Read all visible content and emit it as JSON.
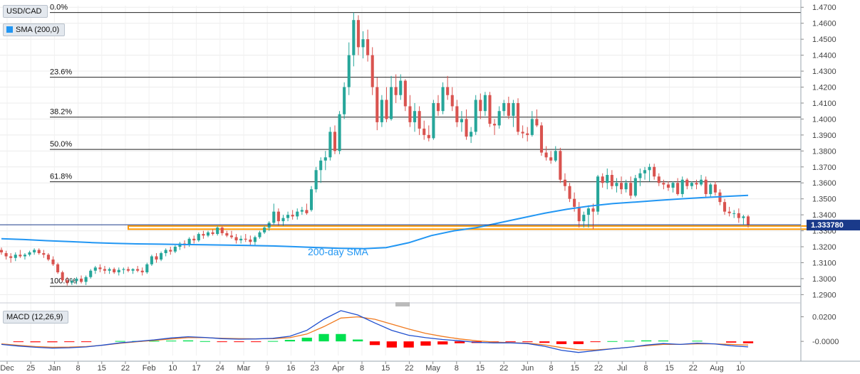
{
  "labels": {
    "symbol": "USD/CAD",
    "sma_legend": "SMA (200,0)",
    "macd_legend": "MACD (12,26,9)",
    "sma_annotation": "200-day SMA",
    "current_price": "1.333780"
  },
  "colors": {
    "up": "#26a69a",
    "down": "#d9534f",
    "sma": "#2196f3",
    "zone": "#ff9800",
    "macd_line": "#1f4fcf",
    "signal_line": "#f07a1f",
    "hist_pos": "#00e050",
    "hist_neg": "#ff0000",
    "price_tag": "#1a3a8a"
  },
  "chart_data": [
    {
      "type": "candlestick",
      "title": "USD/CAD",
      "x_ticks": [
        "Dec",
        "25",
        "Jan",
        "8",
        "15",
        "22",
        "Feb",
        "10",
        "17",
        "24",
        "Mar",
        "9",
        "16",
        "23",
        "Apr",
        "8",
        "15",
        "22",
        "May",
        "8",
        "15",
        "22",
        "Jun",
        "8",
        "15",
        "22",
        "Jul",
        "8",
        "15",
        "22",
        "Aug",
        "10"
      ],
      "y_ticks": [
        "1.2900",
        "1.3000",
        "1.3100",
        "1.3200",
        "1.3300",
        "1.3400",
        "1.3500",
        "1.3600",
        "1.3700",
        "1.3800",
        "1.3900",
        "1.4000",
        "1.4100",
        "1.4200",
        "1.4300",
        "1.4400",
        "1.4500",
        "1.4600",
        "1.4700"
      ],
      "ylim": [
        1.2875,
        1.471
      ],
      "fibonacci": [
        {
          "label": "0.0%",
          "value": 1.4667
        },
        {
          "label": "23.6%",
          "value": 1.4262
        },
        {
          "label": "38.2%",
          "value": 1.4012
        },
        {
          "label": "50.0%",
          "value": 1.381
        },
        {
          "label": "61.8%",
          "value": 1.3607
        },
        {
          "label": "100.0%",
          "value": 1.2952
        }
      ],
      "support_zone": {
        "from": 1.331,
        "to": 1.333
      },
      "last_price": 1.33378,
      "sma_200": [
        1.325,
        1.3245,
        1.3238,
        1.3232,
        1.3226,
        1.3221,
        1.3218,
        1.3216,
        1.3214,
        1.3212,
        1.321,
        1.3208,
        1.3205,
        1.32,
        1.3195,
        1.319,
        1.3188,
        1.3195,
        1.3225,
        1.327,
        1.33,
        1.332,
        1.335,
        1.338,
        1.341,
        1.3435,
        1.3455,
        1.347,
        1.348,
        1.349,
        1.35,
        1.3508,
        1.3515,
        1.3522
      ],
      "sma_label": "200-day SMA",
      "candles": [
        [
          1.318,
          1.3195,
          1.315,
          1.3165
        ],
        [
          1.316,
          1.3175,
          1.312,
          1.314
        ],
        [
          1.314,
          1.316,
          1.31,
          1.313
        ],
        [
          1.313,
          1.3165,
          1.311,
          1.315
        ],
        [
          1.315,
          1.318,
          1.313,
          1.314
        ],
        [
          1.314,
          1.316,
          1.312,
          1.315
        ],
        [
          1.315,
          1.3175,
          1.314,
          1.3165
        ],
        [
          1.3165,
          1.319,
          1.315,
          1.318
        ],
        [
          1.318,
          1.319,
          1.315,
          1.316
        ],
        [
          1.316,
          1.318,
          1.313,
          1.315
        ],
        [
          1.315,
          1.316,
          1.311,
          1.312
        ],
        [
          1.312,
          1.314,
          1.308,
          1.309
        ],
        [
          1.309,
          1.31,
          1.303,
          1.304
        ],
        [
          1.304,
          1.305,
          1.298,
          1.299
        ],
        [
          1.299,
          1.301,
          1.2957,
          1.2975
        ],
        [
          1.2975,
          1.3,
          1.296,
          1.2985
        ],
        [
          1.2985,
          1.301,
          1.2965,
          1.3
        ],
        [
          1.3,
          1.302,
          1.297,
          1.298
        ],
        [
          1.298,
          1.302,
          1.296,
          1.301
        ],
        [
          1.301,
          1.306,
          1.3,
          1.305
        ],
        [
          1.305,
          1.308,
          1.303,
          1.307
        ],
        [
          1.307,
          1.309,
          1.304,
          1.306
        ],
        [
          1.306,
          1.308,
          1.303,
          1.305
        ],
        [
          1.305,
          1.307,
          1.303,
          1.306
        ],
        [
          1.306,
          1.307,
          1.303,
          1.304
        ],
        [
          1.304,
          1.307,
          1.302,
          1.3055
        ],
        [
          1.3055,
          1.307,
          1.303,
          1.306
        ],
        [
          1.306,
          1.3075,
          1.304,
          1.305
        ],
        [
          1.305,
          1.3065,
          1.303,
          1.306
        ],
        [
          1.306,
          1.308,
          1.304,
          1.305
        ],
        [
          1.305,
          1.307,
          1.302,
          1.304
        ],
        [
          1.304,
          1.31,
          1.303,
          1.309
        ],
        [
          1.309,
          1.315,
          1.308,
          1.314
        ],
        [
          1.314,
          1.316,
          1.31,
          1.312
        ],
        [
          1.312,
          1.317,
          1.311,
          1.316
        ],
        [
          1.316,
          1.319,
          1.314,
          1.318
        ],
        [
          1.318,
          1.32,
          1.315,
          1.317
        ],
        [
          1.317,
          1.321,
          1.316,
          1.32
        ],
        [
          1.32,
          1.323,
          1.318,
          1.322
        ],
        [
          1.322,
          1.324,
          1.319,
          1.321
        ],
        [
          1.321,
          1.326,
          1.32,
          1.325
        ],
        [
          1.325,
          1.327,
          1.322,
          1.324
        ],
        [
          1.324,
          1.329,
          1.323,
          1.328
        ],
        [
          1.328,
          1.33,
          1.325,
          1.327
        ],
        [
          1.327,
          1.33,
          1.326,
          1.329
        ],
        [
          1.329,
          1.331,
          1.327,
          1.328
        ],
        [
          1.328,
          1.333,
          1.327,
          1.332
        ],
        [
          1.332,
          1.333,
          1.327,
          1.3285
        ],
        [
          1.3285,
          1.33,
          1.326,
          1.327
        ],
        [
          1.327,
          1.33,
          1.325,
          1.326
        ],
        [
          1.326,
          1.328,
          1.322,
          1.324
        ],
        [
          1.324,
          1.327,
          1.322,
          1.325
        ],
        [
          1.325,
          1.328,
          1.323,
          1.3245
        ],
        [
          1.3245,
          1.327,
          1.321,
          1.323
        ],
        [
          1.323,
          1.327,
          1.321,
          1.326
        ],
        [
          1.326,
          1.33,
          1.325,
          1.329
        ],
        [
          1.329,
          1.333,
          1.328,
          1.332
        ],
        [
          1.332,
          1.336,
          1.33,
          1.335
        ],
        [
          1.335,
          1.347,
          1.334,
          1.342
        ],
        [
          1.342,
          1.344,
          1.333,
          1.336
        ],
        [
          1.336,
          1.34,
          1.333,
          1.338
        ],
        [
          1.338,
          1.342,
          1.336,
          1.34
        ],
        [
          1.34,
          1.343,
          1.337,
          1.339
        ],
        [
          1.339,
          1.344,
          1.337,
          1.342
        ],
        [
          1.342,
          1.345,
          1.34,
          1.343
        ],
        [
          1.343,
          1.347,
          1.34,
          1.341
        ],
        [
          1.343,
          1.358,
          1.342,
          1.356
        ],
        [
          1.356,
          1.37,
          1.354,
          1.368
        ],
        [
          1.368,
          1.376,
          1.36,
          1.374
        ],
        [
          1.374,
          1.38,
          1.368,
          1.376
        ],
        [
          1.376,
          1.395,
          1.374,
          1.392
        ],
        [
          1.392,
          1.396,
          1.378,
          1.38
        ],
        [
          1.38,
          1.405,
          1.378,
          1.403
        ],
        [
          1.403,
          1.423,
          1.4,
          1.42
        ],
        [
          1.42,
          1.448,
          1.415,
          1.44
        ],
        [
          1.44,
          1.4667,
          1.433,
          1.462
        ],
        [
          1.462,
          1.465,
          1.44,
          1.445
        ],
        [
          1.445,
          1.455,
          1.438,
          1.45
        ],
        [
          1.45,
          1.456,
          1.436,
          1.44
        ],
        [
          1.44,
          1.445,
          1.415,
          1.42
        ],
        [
          1.42,
          1.426,
          1.393,
          1.398
        ],
        [
          1.398,
          1.415,
          1.395,
          1.412
        ],
        [
          1.412,
          1.42,
          1.398,
          1.4
        ],
        [
          1.4,
          1.427,
          1.399,
          1.42
        ],
        [
          1.42,
          1.428,
          1.41,
          1.415
        ],
        [
          1.415,
          1.428,
          1.412,
          1.424
        ],
        [
          1.424,
          1.425,
          1.405,
          1.408
        ],
        [
          1.408,
          1.415,
          1.395,
          1.398
        ],
        [
          1.398,
          1.41,
          1.392,
          1.405
        ],
        [
          1.405,
          1.408,
          1.39,
          1.394
        ],
        [
          1.394,
          1.399,
          1.387,
          1.39
        ],
        [
          1.39,
          1.396,
          1.386,
          1.388
        ],
        [
          1.388,
          1.412,
          1.387,
          1.41
        ],
        [
          1.41,
          1.415,
          1.402,
          1.405
        ],
        [
          1.405,
          1.423,
          1.403,
          1.42
        ],
        [
          1.42,
          1.427,
          1.412,
          1.415
        ],
        [
          1.415,
          1.42,
          1.405,
          1.408
        ],
        [
          1.408,
          1.412,
          1.395,
          1.398
        ],
        [
          1.398,
          1.405,
          1.392,
          1.4
        ],
        [
          1.4,
          1.406,
          1.387,
          1.389
        ],
        [
          1.389,
          1.395,
          1.385,
          1.392
        ],
        [
          1.392,
          1.415,
          1.39,
          1.412
        ],
        [
          1.412,
          1.416,
          1.4,
          1.405
        ],
        [
          1.405,
          1.417,
          1.402,
          1.415
        ],
        [
          1.415,
          1.417,
          1.395,
          1.397
        ],
        [
          1.397,
          1.4,
          1.39,
          1.396
        ],
        [
          1.396,
          1.408,
          1.394,
          1.405
        ],
        [
          1.405,
          1.412,
          1.402,
          1.41
        ],
        [
          1.41,
          1.414,
          1.4,
          1.402
        ],
        [
          1.402,
          1.412,
          1.395,
          1.41
        ],
        [
          1.41,
          1.413,
          1.39,
          1.392
        ],
        [
          1.392,
          1.396,
          1.388,
          1.391
        ],
        [
          1.391,
          1.395,
          1.386,
          1.39
        ],
        [
          1.39,
          1.405,
          1.389,
          1.4
        ],
        [
          1.4,
          1.406,
          1.395,
          1.396
        ],
        [
          1.396,
          1.398,
          1.377,
          1.379
        ],
        [
          1.379,
          1.383,
          1.374,
          1.376
        ],
        [
          1.376,
          1.38,
          1.372,
          1.374
        ],
        [
          1.374,
          1.383,
          1.373,
          1.38
        ],
        [
          1.38,
          1.382,
          1.36,
          1.362
        ],
        [
          1.362,
          1.366,
          1.355,
          1.358
        ],
        [
          1.358,
          1.36,
          1.348,
          1.35
        ],
        [
          1.35,
          1.354,
          1.342,
          1.345
        ],
        [
          1.345,
          1.348,
          1.332,
          1.336
        ],
        [
          1.336,
          1.342,
          1.332,
          1.34
        ],
        [
          1.34,
          1.346,
          1.332,
          1.344
        ],
        [
          1.344,
          1.347,
          1.331,
          1.342
        ],
        [
          1.342,
          1.365,
          1.34,
          1.364
        ],
        [
          1.364,
          1.366,
          1.357,
          1.36
        ],
        [
          1.36,
          1.369,
          1.356,
          1.365
        ],
        [
          1.365,
          1.368,
          1.356,
          1.358
        ],
        [
          1.358,
          1.363,
          1.354,
          1.36
        ],
        [
          1.36,
          1.364,
          1.353,
          1.356
        ],
        [
          1.356,
          1.362,
          1.354,
          1.36
        ],
        [
          1.36,
          1.364,
          1.35,
          1.352
        ],
        [
          1.352,
          1.365,
          1.351,
          1.363
        ],
        [
          1.363,
          1.369,
          1.358,
          1.366
        ],
        [
          1.366,
          1.37,
          1.362,
          1.368
        ],
        [
          1.368,
          1.372,
          1.361,
          1.37
        ],
        [
          1.37,
          1.372,
          1.362,
          1.364
        ],
        [
          1.364,
          1.366,
          1.358,
          1.36
        ],
        [
          1.36,
          1.362,
          1.356,
          1.359
        ],
        [
          1.359,
          1.361,
          1.355,
          1.357
        ],
        [
          1.357,
          1.361,
          1.354,
          1.36
        ],
        [
          1.36,
          1.363,
          1.352,
          1.353
        ],
        [
          1.353,
          1.364,
          1.351,
          1.362
        ],
        [
          1.362,
          1.363,
          1.356,
          1.358
        ],
        [
          1.358,
          1.361,
          1.356,
          1.36
        ],
        [
          1.36,
          1.362,
          1.356,
          1.359
        ],
        [
          1.359,
          1.365,
          1.358,
          1.362
        ],
        [
          1.362,
          1.364,
          1.351,
          1.353
        ],
        [
          1.353,
          1.36,
          1.351,
          1.359
        ],
        [
          1.359,
          1.361,
          1.352,
          1.354
        ],
        [
          1.354,
          1.356,
          1.346,
          1.348
        ],
        [
          1.348,
          1.35,
          1.34,
          1.342
        ],
        [
          1.342,
          1.345,
          1.339,
          1.341
        ],
        [
          1.341,
          1.343,
          1.338,
          1.341
        ],
        [
          1.341,
          1.344,
          1.335,
          1.338
        ],
        [
          1.338,
          1.34,
          1.334,
          1.339
        ],
        [
          1.339,
          1.34,
          1.332,
          1.3338
        ]
      ]
    },
    {
      "type": "macd",
      "title": "MACD (12,26,9)",
      "y_ticks": [
        "0.0200",
        "-0.0000"
      ],
      "ylim": [
        -0.0115,
        0.029
      ],
      "macd": [
        -0.0025,
        -0.0038,
        -0.0048,
        -0.0055,
        -0.0052,
        -0.0045,
        -0.003,
        -0.0012,
        0.0,
        0.0012,
        0.0028,
        0.0038,
        0.0032,
        0.0022,
        0.0018,
        0.002,
        0.0025,
        0.0042,
        0.009,
        0.018,
        0.025,
        0.0215,
        0.015,
        0.009,
        0.005,
        0.003,
        0.0015,
        0.0005,
        -0.0008,
        -0.0012,
        -0.0012,
        -0.0018,
        -0.004,
        -0.0072,
        -0.009,
        -0.0075,
        -0.006,
        -0.0048,
        -0.003,
        -0.0018,
        -0.0025,
        -0.0015,
        -0.002,
        -0.0035,
        -0.0045
      ],
      "signal": [
        -0.002,
        -0.0032,
        -0.0042,
        -0.0048,
        -0.0047,
        -0.0042,
        -0.0031,
        -0.0015,
        -0.0003,
        0.0008,
        0.002,
        0.003,
        0.003,
        0.0025,
        0.0022,
        0.0021,
        0.0022,
        0.003,
        0.006,
        0.012,
        0.019,
        0.02,
        0.018,
        0.014,
        0.01,
        0.0065,
        0.004,
        0.002,
        0.0005,
        -0.0005,
        -0.001,
        -0.0015,
        -0.0028,
        -0.005,
        -0.0068,
        -0.007,
        -0.006,
        -0.0048,
        -0.0035,
        -0.0025,
        -0.0025,
        -0.002,
        -0.002,
        -0.0025,
        -0.003
      ],
      "histogram": [
        0,
        -0.0005,
        -0.0007,
        -0.0007,
        -0.0005,
        -0.0003,
        0,
        0.0003,
        0.0003,
        0.0004,
        0.0006,
        0.0008,
        0.0002,
        -0.0003,
        -0.0004,
        -0.0001,
        0.0003,
        0.0012,
        0.003,
        0.006,
        0.006,
        0.0015,
        -0.003,
        -0.005,
        -0.005,
        -0.0035,
        -0.0025,
        -0.0015,
        -0.0013,
        -0.0007,
        -0.0002,
        -0.0003,
        -0.0012,
        -0.0022,
        -0.0022,
        -0.0005,
        0.0002,
        0.0005,
        0.0008,
        0.0007,
        0,
        0.0005,
        0,
        -0.001,
        -0.0015
      ]
    }
  ]
}
